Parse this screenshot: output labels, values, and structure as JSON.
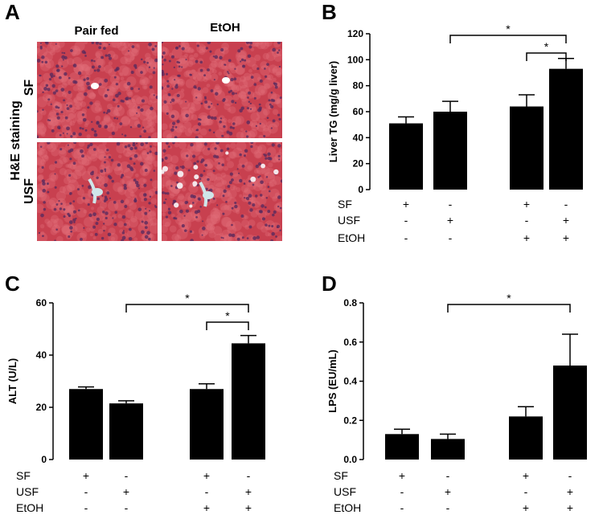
{
  "histology": {
    "letter": "A",
    "col_labels": [
      "Pair fed",
      "EtOH"
    ],
    "row_labels": [
      "SF",
      "USF"
    ],
    "side_label": "H&E  staining",
    "tissue_colors": {
      "base": "#c8404f",
      "light": "#e2707c",
      "nuclei": "#5a2a5e",
      "vessel": "#cfe6ea"
    }
  },
  "chart_data": [
    {
      "letter": "B",
      "type": "bar",
      "ylabel": "Liver TG (mg/g liver)",
      "ylim": [
        0,
        120
      ],
      "yticks": [
        "0",
        "20",
        "40",
        "60",
        "80",
        "100",
        "120"
      ],
      "values": [
        51,
        60,
        64,
        93
      ],
      "errors": [
        5,
        8,
        9,
        8
      ],
      "significance": [
        {
          "from": 1,
          "to": 3,
          "label": "*"
        },
        {
          "from": 2,
          "to": 3,
          "label": "*"
        }
      ],
      "factors": [
        {
          "name": "SF",
          "signs": [
            "+",
            "-",
            "+",
            "-"
          ]
        },
        {
          "name": "USF",
          "signs": [
            "-",
            "+",
            "-",
            "+"
          ]
        },
        {
          "name": "EtOH",
          "signs": [
            "-",
            "-",
            "+",
            "+"
          ]
        }
      ]
    },
    {
      "letter": "C",
      "type": "bar",
      "ylabel": "ALT (U/L)",
      "ylim": [
        0,
        60
      ],
      "yticks": [
        "0",
        "20",
        "40",
        "60"
      ],
      "values": [
        27,
        21.5,
        27,
        44.5
      ],
      "errors": [
        0.8,
        1,
        2,
        3
      ],
      "significance": [
        {
          "from": 1,
          "to": 3,
          "label": "*"
        },
        {
          "from": 2,
          "to": 3,
          "label": "*"
        }
      ],
      "factors": [
        {
          "name": "SF",
          "signs": [
            "+",
            "-",
            "+",
            "-"
          ]
        },
        {
          "name": "USF",
          "signs": [
            "-",
            "+",
            "-",
            "+"
          ]
        },
        {
          "name": "EtOH",
          "signs": [
            "-",
            "-",
            "+",
            "+"
          ]
        }
      ]
    },
    {
      "letter": "D",
      "type": "bar",
      "ylabel": "LPS (EU/mL)",
      "ylim": [
        0,
        0.8
      ],
      "yticks": [
        "0.0",
        "0.2",
        "0.4",
        "0.6",
        "0.8"
      ],
      "values": [
        0.13,
        0.105,
        0.22,
        0.48
      ],
      "errors": [
        0.025,
        0.025,
        0.05,
        0.16
      ],
      "significance": [
        {
          "from": 1,
          "to": 3,
          "label": "*"
        }
      ],
      "factors": [
        {
          "name": "SF",
          "signs": [
            "+",
            "-",
            "+",
            "-"
          ]
        },
        {
          "name": "USF",
          "signs": [
            "-",
            "+",
            "-",
            "+"
          ]
        },
        {
          "name": "EtOH",
          "signs": [
            "-",
            "-",
            "+",
            "+"
          ]
        }
      ]
    }
  ]
}
